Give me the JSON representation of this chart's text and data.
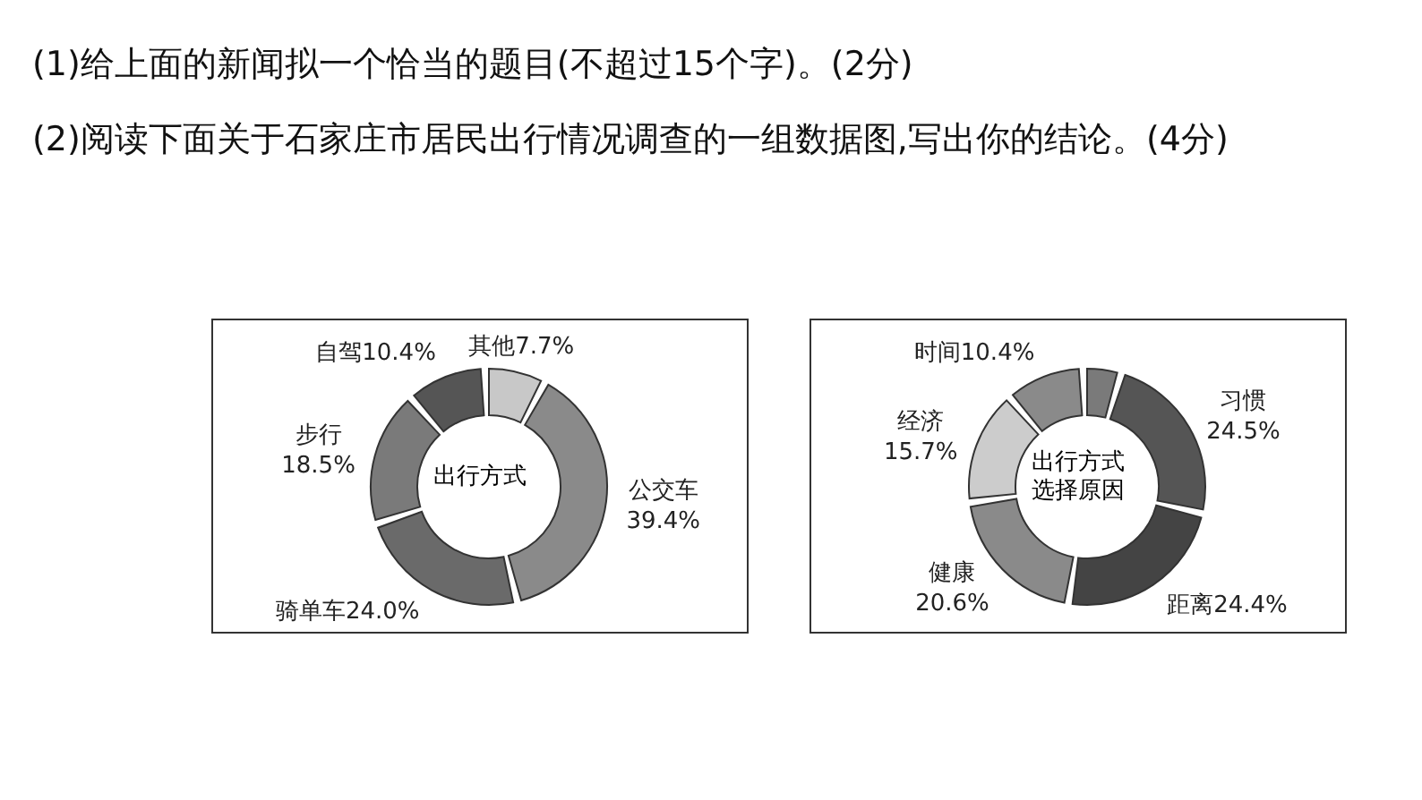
{
  "chart_data": [
    {
      "type": "donut",
      "title": "出行方式",
      "annotations": [
        "(1)给上面的新闻拟一个恰当的题目(不超过15个字)。(2分)",
        "(2)阅读下面关于石家庄市居民出行情况调查的一组数据图,写出你的结论。(4分)"
      ],
      "categories": [
        "其他",
        "公交车",
        "骑单车",
        "步行",
        "自驾"
      ],
      "values": [
        7.7,
        39.4,
        24.0,
        18.5,
        10.4
      ],
      "value_labels": [
        "7.7%",
        "39.4%",
        "24.0%",
        "18.5%",
        "10.4%"
      ],
      "colors": [
        "#c8c8c8",
        "#8a8a8a",
        "#6a6a6a",
        "#7a7a7a",
        "#555555"
      ]
    },
    {
      "type": "donut",
      "title": "出行方式选择原因",
      "categories": [
        null,
        "习惯",
        "距离",
        "健康",
        "经济",
        "时间"
      ],
      "values": [
        4.4,
        24.5,
        24.4,
        20.6,
        15.7,
        10.4
      ],
      "value_labels": [
        null,
        "24.5%",
        "24.4%",
        "20.6%",
        "15.7%",
        "10.4%"
      ],
      "colors": [
        "#7a7a7a",
        "#555555",
        "#444444",
        "#8a8a8a",
        "#cccccc",
        "#8a8a8a"
      ]
    }
  ]
}
